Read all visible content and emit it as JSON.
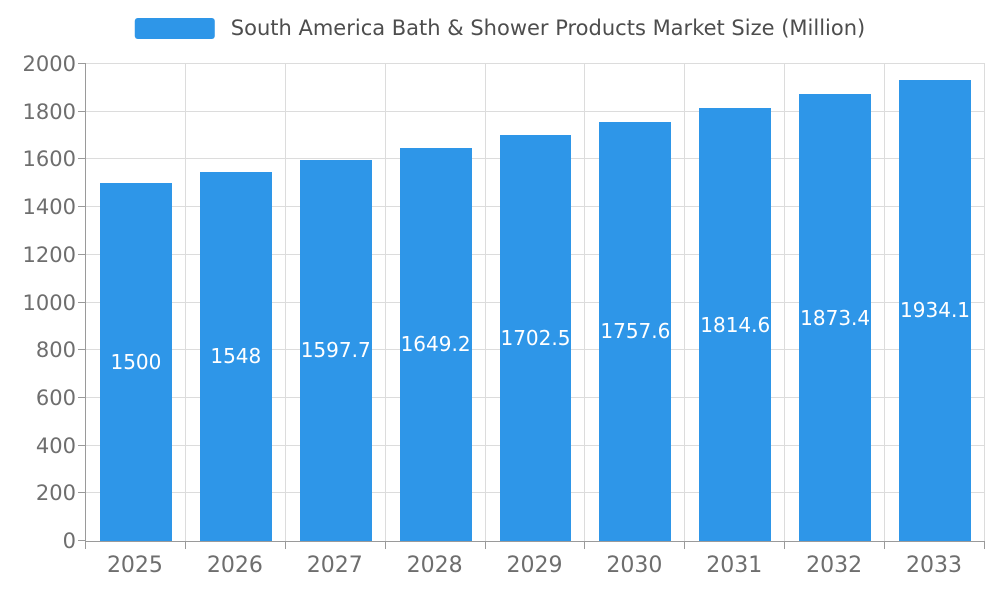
{
  "chart_data": {
    "type": "bar",
    "title": "South America Bath & Shower Products Market Size (Million)",
    "categories": [
      "2025",
      "2026",
      "2027",
      "2028",
      "2029",
      "2030",
      "2031",
      "2032",
      "2033"
    ],
    "values": [
      1500,
      1548,
      1597.7,
      1649.2,
      1702.5,
      1757.6,
      1814.6,
      1873.4,
      1934.1
    ],
    "value_labels": [
      "1500",
      "1548",
      "1597.7",
      "1649.2",
      "1702.5",
      "1757.6",
      "1814.6",
      "1873.4",
      "1934.1"
    ],
    "ylim": [
      0,
      2000
    ],
    "ytick_step": 200,
    "ytick_labels": [
      "0",
      "200",
      "400",
      "600",
      "800",
      "1000",
      "1200",
      "1400",
      "1600",
      "1800",
      "2000"
    ],
    "grid": true,
    "legend_position": "top",
    "bar_color": "#2E96E8",
    "bar_label_color": "#ffffff",
    "axis_color": "#9a9a9a",
    "grid_color": "#dcdcdc",
    "tick_label_color": "#6e6e6e",
    "title_color": "#4d4d4d"
  }
}
